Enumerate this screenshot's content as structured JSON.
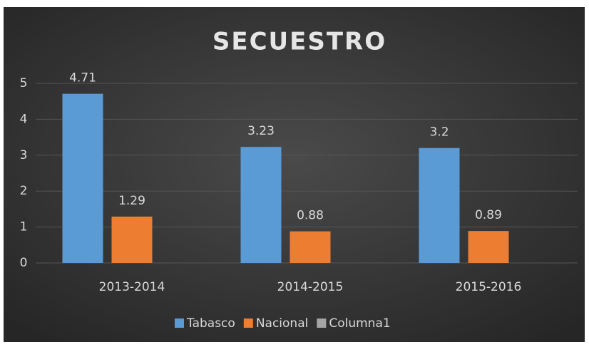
{
  "chart_data": {
    "type": "bar",
    "title": "SECUESTRO",
    "categories": [
      "2013-2014",
      "2014-2015",
      "2015-2016"
    ],
    "series": [
      {
        "name": "Tabasco",
        "color": "#5b9bd5",
        "values": [
          4.71,
          3.23,
          3.2
        ]
      },
      {
        "name": "Nacional",
        "color": "#ed7d31",
        "values": [
          1.29,
          0.88,
          0.89
        ]
      },
      {
        "name": "Columna1",
        "color": "#a5a5a5",
        "values": [
          null,
          null,
          null
        ]
      }
    ],
    "ylim": [
      0,
      5
    ],
    "yticks": [
      0,
      1,
      2,
      3,
      4,
      5
    ],
    "grid": true,
    "legend": "bottom"
  }
}
